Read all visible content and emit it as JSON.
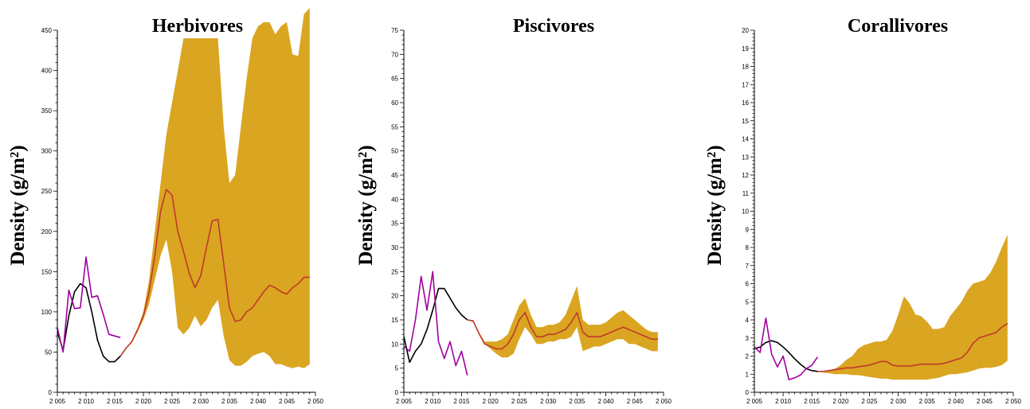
{
  "chart_data": [
    {
      "type": "line",
      "title": "Herbivores",
      "ylabel": "Density (g/m²)",
      "xlabel": "",
      "xlim": [
        2005,
        2050
      ],
      "ylim": [
        0,
        450
      ],
      "x_ticks": [
        2005,
        2010,
        2015,
        2020,
        2025,
        2030,
        2035,
        2040,
        2045,
        2050
      ],
      "x_tick_labels": [
        "2 005",
        "2 010",
        "2 015",
        "2 020",
        "2 025",
        "2 030",
        "2 035",
        "2 040",
        "2 045",
        "2 050"
      ],
      "y_ticks": [
        0,
        50,
        100,
        150,
        200,
        250,
        300,
        350,
        400,
        450
      ],
      "y_tick_labels": [
        "0",
        "50",
        "100",
        "150",
        "200",
        "250",
        "300",
        "350",
        "400",
        "450"
      ],
      "band": {
        "x": [
          2016,
          2017,
          2018,
          2019,
          2020,
          2021,
          2022,
          2023,
          2024,
          2025,
          2026,
          2027,
          2028,
          2029,
          2030,
          2031,
          2032,
          2033,
          2034,
          2035,
          2036,
          2037,
          2038,
          2039,
          2040,
          2041,
          2042,
          2043,
          2044,
          2045,
          2046,
          2047,
          2048,
          2049
        ],
        "lower": [
          45,
          55,
          62,
          75,
          90,
          110,
          140,
          170,
          190,
          150,
          80,
          72,
          80,
          95,
          82,
          90,
          105,
          115,
          70,
          40,
          33,
          33,
          38,
          45,
          48,
          50,
          45,
          35,
          35,
          32,
          30,
          32,
          30,
          35
        ],
        "upper": [
          45,
          55,
          65,
          80,
          100,
          140,
          200,
          260,
          320,
          360,
          400,
          440,
          440,
          440,
          440,
          440,
          440,
          440,
          330,
          260,
          270,
          330,
          390,
          440,
          455,
          460,
          460,
          445,
          455,
          460,
          420,
          418,
          470,
          480
        ]
      },
      "series": [
        {
          "color": "#000000",
          "x": [
            2005,
            2006,
            2007,
            2008,
            2009,
            2010,
            2011,
            2012,
            2013,
            2014,
            2015,
            2016
          ],
          "y": [
            75,
            52,
            95,
            125,
            135,
            130,
            100,
            65,
            45,
            38,
            38,
            45
          ]
        },
        {
          "color": "#a000a0",
          "x": [
            2005,
            2006,
            2007,
            2008,
            2009,
            2010,
            2011,
            2012,
            2013,
            2014,
            2015,
            2016
          ],
          "y": [
            80,
            50,
            127,
            104,
            105,
            168,
            118,
            120,
            97,
            72,
            70,
            68
          ]
        },
        {
          "color": "#c0392b",
          "x": [
            2016,
            2017,
            2018,
            2019,
            2020,
            2021,
            2022,
            2023,
            2024,
            2025,
            2026,
            2027,
            2028,
            2029,
            2030,
            2031,
            2032,
            2033,
            2034,
            2035,
            2036,
            2037,
            2038,
            2039,
            2040,
            2041,
            2042,
            2043,
            2044,
            2045,
            2046,
            2047,
            2048,
            2049
          ],
          "y": [
            45,
            55,
            63,
            78,
            95,
            125,
            170,
            225,
            252,
            245,
            200,
            175,
            148,
            130,
            145,
            180,
            213,
            215,
            160,
            105,
            88,
            90,
            100,
            105,
            115,
            125,
            133,
            130,
            125,
            122,
            130,
            135,
            143,
            143
          ]
        }
      ],
      "band_color": "#daa520"
    },
    {
      "type": "line",
      "title": "Piscivores",
      "ylabel": "Density (g/m²)",
      "xlabel": "",
      "xlim": [
        2005,
        2050
      ],
      "ylim": [
        0,
        75
      ],
      "x_ticks": [
        2005,
        2010,
        2015,
        2020,
        2025,
        2030,
        2035,
        2040,
        2045,
        2050
      ],
      "x_tick_labels": [
        "2 005",
        "2 010",
        "2 015",
        "2 020",
        "2 025",
        "2 030",
        "2 035",
        "2 040",
        "2 045",
        "2 050"
      ],
      "y_ticks": [
        0,
        5,
        10,
        15,
        20,
        25,
        30,
        35,
        40,
        45,
        50,
        55,
        60,
        65,
        70,
        75
      ],
      "y_tick_labels": [
        "0",
        "5",
        "10",
        "15",
        "20",
        "25",
        "30",
        "35",
        "40",
        "45",
        "50",
        "55",
        "60",
        "65",
        "70",
        "75"
      ],
      "band": {
        "x": [
          2016,
          2017,
          2018,
          2019,
          2020,
          2021,
          2022,
          2023,
          2024,
          2025,
          2026,
          2027,
          2028,
          2029,
          2030,
          2031,
          2032,
          2033,
          2034,
          2035,
          2036,
          2037,
          2038,
          2039,
          2040,
          2041,
          2042,
          2043,
          2044,
          2045,
          2046,
          2047,
          2048,
          2049
        ],
        "lower": [
          15,
          14.5,
          12,
          10,
          9,
          8,
          7.2,
          7.2,
          8,
          11,
          13.5,
          12,
          10,
          10,
          10.5,
          10.5,
          11,
          11,
          11.5,
          13.5,
          8.5,
          9,
          9.5,
          9.5,
          10,
          10.5,
          11,
          11,
          10,
          10,
          9.5,
          9,
          8.5,
          8.5
        ],
        "upper": [
          15,
          15,
          12.5,
          10.5,
          10.5,
          10.5,
          11,
          12,
          15,
          18,
          19.5,
          16,
          13.5,
          13.5,
          14,
          14,
          14.5,
          16,
          19,
          22,
          15,
          14,
          14,
          14,
          14.5,
          15.5,
          16.5,
          17,
          16,
          15,
          14,
          13,
          12.5,
          12.5
        ]
      },
      "series": [
        {
          "color": "#000000",
          "x": [
            2005,
            2006,
            2007,
            2008,
            2009,
            2010,
            2011,
            2012,
            2013,
            2014,
            2015,
            2016
          ],
          "y": [
            11.5,
            6.2,
            8.5,
            10,
            13,
            17,
            21.5,
            21.5,
            19.5,
            17.5,
            16,
            15
          ]
        },
        {
          "color": "#a000a0",
          "x": [
            2005,
            2006,
            2007,
            2008,
            2009,
            2010,
            2011,
            2012,
            2013,
            2014,
            2015,
            2016
          ],
          "y": [
            9.5,
            8.5,
            15,
            24,
            17,
            25,
            10.5,
            7,
            10.5,
            5.5,
            8.5,
            3.5
          ]
        },
        {
          "color": "#c0392b",
          "x": [
            2016,
            2017,
            2018,
            2019,
            2020,
            2021,
            2022,
            2023,
            2024,
            2025,
            2026,
            2027,
            2028,
            2029,
            2030,
            2031,
            2032,
            2033,
            2034,
            2035,
            2036,
            2037,
            2038,
            2039,
            2040,
            2041,
            2042,
            2043,
            2044,
            2045,
            2046,
            2047,
            2048,
            2049
          ],
          "y": [
            15,
            14.8,
            12.2,
            10,
            9.5,
            9,
            9,
            10,
            12,
            15,
            16.5,
            13.5,
            11.5,
            11.5,
            12,
            12,
            12.5,
            13,
            14.5,
            16.5,
            12.5,
            11.5,
            11.5,
            11.5,
            12,
            12.5,
            13,
            13.5,
            13,
            12.5,
            12,
            11.5,
            11,
            11
          ]
        }
      ],
      "band_color": "#daa520"
    },
    {
      "type": "line",
      "title": "Corallivores",
      "ylabel": "Density (g/m²)",
      "xlabel": "",
      "xlim": [
        2005,
        2050
      ],
      "ylim": [
        0,
        20
      ],
      "x_ticks": [
        2005,
        2010,
        2015,
        2020,
        2025,
        2030,
        2035,
        2040,
        2045,
        2050
      ],
      "x_tick_labels": [
        "2 005",
        "2 010",
        "2 015",
        "2 020",
        "2 025",
        "2 030",
        "2 035",
        "2 040",
        "2 045",
        "2 050"
      ],
      "y_ticks": [
        0,
        1,
        2,
        3,
        4,
        5,
        6,
        7,
        8,
        9,
        10,
        11,
        12,
        13,
        14,
        15,
        16,
        17,
        18,
        19,
        20
      ],
      "y_tick_labels": [
        "0",
        "1",
        "2",
        "3",
        "4",
        "5",
        "6",
        "7",
        "8",
        "9",
        "10",
        "11",
        "12",
        "13",
        "14",
        "15",
        "16",
        "17",
        "18",
        "19",
        "20"
      ],
      "band": {
        "x": [
          2016,
          2017,
          2018,
          2019,
          2020,
          2021,
          2022,
          2023,
          2024,
          2025,
          2026,
          2027,
          2028,
          2029,
          2030,
          2031,
          2032,
          2033,
          2034,
          2035,
          2036,
          2037,
          2038,
          2039,
          2040,
          2041,
          2042,
          2043,
          2044,
          2045,
          2046,
          2047,
          2048,
          2049
        ],
        "lower": [
          1.15,
          1.1,
          1.05,
          1.0,
          1.0,
          1.0,
          0.95,
          0.95,
          0.9,
          0.85,
          0.8,
          0.75,
          0.75,
          0.7,
          0.7,
          0.7,
          0.7,
          0.7,
          0.7,
          0.7,
          0.75,
          0.8,
          0.9,
          1.0,
          1.0,
          1.05,
          1.1,
          1.2,
          1.3,
          1.35,
          1.35,
          1.4,
          1.5,
          1.75
        ],
        "upper": [
          1.15,
          1.15,
          1.2,
          1.3,
          1.5,
          1.8,
          2.0,
          2.4,
          2.6,
          2.7,
          2.8,
          2.8,
          2.9,
          3.4,
          4.3,
          5.3,
          4.9,
          4.3,
          4.2,
          3.9,
          3.5,
          3.5,
          3.6,
          4.2,
          4.6,
          5.0,
          5.6,
          6.0,
          6.1,
          6.2,
          6.6,
          7.2,
          8.0,
          8.7
        ]
      },
      "series": [
        {
          "color": "#000000",
          "x": [
            2005,
            2006,
            2007,
            2008,
            2009,
            2010,
            2011,
            2012,
            2013,
            2014,
            2015,
            2016
          ],
          "y": [
            2.4,
            2.5,
            2.75,
            2.85,
            2.75,
            2.5,
            2.2,
            1.85,
            1.55,
            1.3,
            1.2,
            1.15
          ]
        },
        {
          "color": "#a000a0",
          "x": [
            2005,
            2006,
            2007,
            2008,
            2009,
            2010,
            2011,
            2012,
            2013,
            2014,
            2015,
            2016
          ],
          "y": [
            2.5,
            2.2,
            4.1,
            2.1,
            1.4,
            2.0,
            0.7,
            0.8,
            0.95,
            1.3,
            1.5,
            1.95
          ]
        },
        {
          "color": "#c0392b",
          "x": [
            2016,
            2017,
            2018,
            2019,
            2020,
            2021,
            2022,
            2023,
            2024,
            2025,
            2026,
            2027,
            2028,
            2029,
            2030,
            2031,
            2032,
            2033,
            2034,
            2035,
            2036,
            2037,
            2038,
            2039,
            2040,
            2041,
            2042,
            2043,
            2044,
            2045,
            2046,
            2047,
            2048,
            2049
          ],
          "y": [
            1.15,
            1.15,
            1.2,
            1.25,
            1.3,
            1.35,
            1.35,
            1.4,
            1.45,
            1.5,
            1.6,
            1.7,
            1.7,
            1.5,
            1.45,
            1.45,
            1.45,
            1.5,
            1.55,
            1.55,
            1.55,
            1.55,
            1.6,
            1.7,
            1.8,
            1.9,
            2.2,
            2.7,
            3.0,
            3.1,
            3.2,
            3.3,
            3.6,
            3.8
          ]
        }
      ],
      "band_color": "#daa520"
    }
  ]
}
